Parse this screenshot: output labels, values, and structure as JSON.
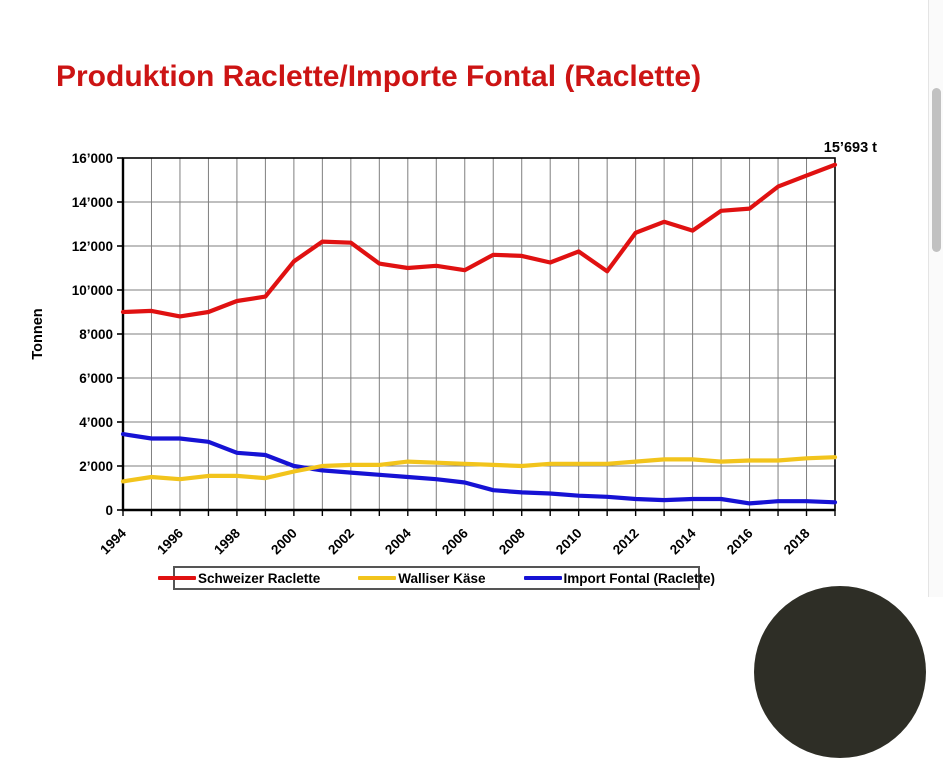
{
  "page": {
    "title": "Produktion Raclette/Importe Fontal (Raclette)",
    "title_color": "#cc1414"
  },
  "annotation": {
    "text": "15’693 t"
  },
  "chart_data": {
    "type": "line",
    "title": "Produktion Raclette/Importe Fontal (Raclette)",
    "xlabel": "",
    "ylabel": "Tonnen",
    "ylim": [
      0,
      16000
    ],
    "ytick_step": 2000,
    "ytick_labels": [
      "0",
      "2’000",
      "4’000",
      "6’000",
      "8’000",
      "10’000",
      "12’000",
      "14’000",
      "16’000"
    ],
    "x": [
      1994,
      1995,
      1996,
      1997,
      1998,
      1999,
      2000,
      2001,
      2002,
      2003,
      2004,
      2005,
      2006,
      2007,
      2008,
      2009,
      2010,
      2011,
      2012,
      2013,
      2014,
      2015,
      2016,
      2017,
      2018,
      2019
    ],
    "xtick_label_years": [
      1994,
      1996,
      1998,
      2000,
      2002,
      2004,
      2006,
      2008,
      2010,
      2012,
      2014,
      2016,
      2018
    ],
    "grid": true,
    "grid_color": "#7f7f7f",
    "legend_position": "bottom",
    "annotation": {
      "text": "15’693 t",
      "x": 2019,
      "y": 15693
    },
    "series": [
      {
        "name": "Schweizer Raclette",
        "color": "#e01111",
        "values": [
          9000,
          9050,
          8800,
          9000,
          9500,
          9700,
          11300,
          12200,
          12150,
          11200,
          11000,
          11100,
          10900,
          11600,
          11550,
          11250,
          11750,
          10850,
          12600,
          13100,
          12700,
          13600,
          13700,
          14700,
          15200,
          15693
        ]
      },
      {
        "name": "Walliser Käse",
        "color": "#f2c41c",
        "values": [
          1300,
          1500,
          1400,
          1550,
          1550,
          1450,
          1750,
          2000,
          2050,
          2050,
          2200,
          2150,
          2100,
          2050,
          2000,
          2100,
          2100,
          2100,
          2200,
          2300,
          2300,
          2200,
          2250,
          2250,
          2350,
          2400
        ]
      },
      {
        "name": "Import Fontal (Raclette)",
        "color": "#1612d4",
        "values": [
          3450,
          3250,
          3250,
          3100,
          2600,
          2500,
          2000,
          1800,
          1700,
          1600,
          1500,
          1400,
          1250,
          900,
          800,
          750,
          650,
          600,
          500,
          450,
          500,
          500,
          300,
          400,
          400,
          350
        ]
      }
    ]
  }
}
